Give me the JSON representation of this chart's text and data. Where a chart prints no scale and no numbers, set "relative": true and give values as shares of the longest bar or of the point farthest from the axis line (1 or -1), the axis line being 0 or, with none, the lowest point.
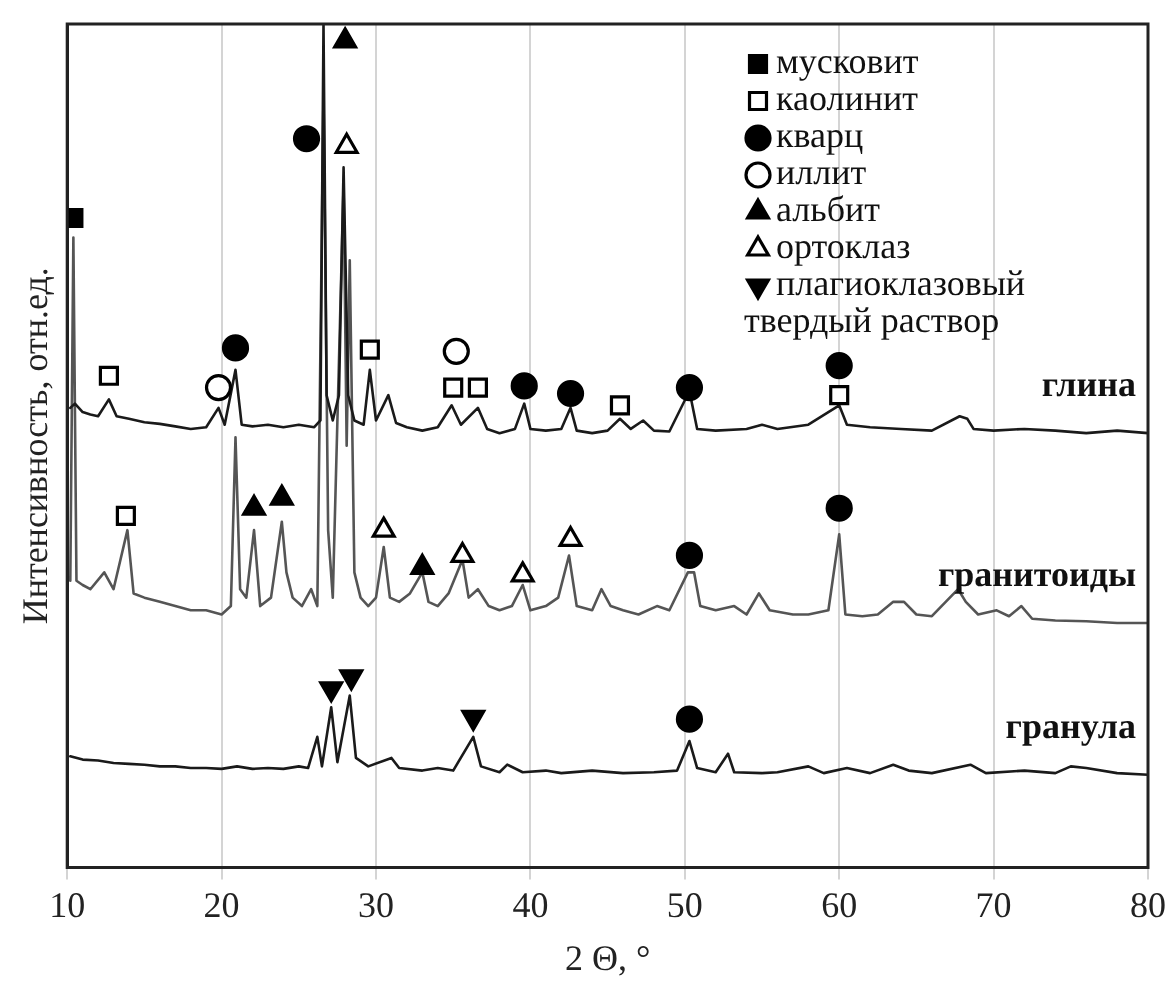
{
  "chart_data": {
    "type": "line",
    "relative": true,
    "xlabel": "2 Θ, °",
    "ylabel": "Интенсивность, отн.ед.",
    "xlim": [
      10,
      80
    ],
    "xticks": [
      10,
      20,
      30,
      40,
      50,
      60,
      70,
      80
    ],
    "grid": "x",
    "legend": "top right",
    "marker": "none",
    "line_style": "solid",
    "series": [
      {
        "name": "глина",
        "color": "#1a1a1a",
        "x": [
          10.2,
          10.5,
          11,
          11.5,
          12,
          12.7,
          13.2,
          14,
          15,
          16,
          17,
          18,
          19,
          19.8,
          20.2,
          20.9,
          21.3,
          22,
          23,
          24,
          25,
          26,
          26.4,
          26.6,
          26.8,
          27.2,
          27.6,
          27.9,
          28.2,
          28.6,
          29.2,
          29.6,
          30,
          30.8,
          31.3,
          32,
          33,
          34,
          34.9,
          35.5,
          36.6,
          37.2,
          38,
          39,
          39.6,
          40,
          41,
          42,
          42.6,
          43,
          44,
          45,
          45.8,
          46.5,
          47.3,
          48,
          49,
          50.3,
          50.8,
          52,
          54,
          55,
          56,
          58,
          60,
          60.5,
          62,
          64,
          66,
          67.8,
          68.3,
          68.7,
          70,
          72,
          74,
          76,
          78,
          80
        ],
        "values": [
          0.545,
          0.55,
          0.54,
          0.537,
          0.535,
          0.555,
          0.535,
          0.532,
          0.528,
          0.526,
          0.523,
          0.52,
          0.522,
          0.545,
          0.525,
          0.59,
          0.525,
          0.523,
          0.525,
          0.522,
          0.525,
          0.522,
          0.53,
          1.0,
          0.56,
          0.53,
          0.56,
          0.83,
          0.56,
          0.53,
          0.525,
          0.59,
          0.53,
          0.56,
          0.527,
          0.522,
          0.518,
          0.522,
          0.548,
          0.525,
          0.545,
          0.52,
          0.515,
          0.52,
          0.55,
          0.52,
          0.518,
          0.52,
          0.545,
          0.518,
          0.515,
          0.518,
          0.532,
          0.52,
          0.53,
          0.518,
          0.517,
          0.565,
          0.52,
          0.518,
          0.52,
          0.525,
          0.52,
          0.525,
          0.548,
          0.525,
          0.522,
          0.52,
          0.518,
          0.535,
          0.532,
          0.52,
          0.518,
          0.52,
          0.518,
          0.515,
          0.518,
          0.515
        ]
      },
      {
        "name": "гранитоиды",
        "color": "#555555",
        "x": [
          10.2,
          10.4,
          10.6,
          11,
          11.5,
          12.4,
          13,
          13.9,
          14.3,
          15,
          16,
          17,
          18,
          19,
          20,
          20.6,
          20.9,
          21.2,
          21.6,
          22.1,
          22.5,
          23.2,
          23.9,
          24.2,
          24.6,
          25.2,
          25.8,
          26.2,
          26.6,
          26.9,
          27.2,
          27.6,
          27.9,
          28.1,
          28.3,
          28.6,
          29,
          29.5,
          30,
          30.5,
          30.9,
          31.5,
          32.2,
          33,
          33.4,
          34,
          34.7,
          35.6,
          36,
          36.6,
          37.3,
          38,
          38.8,
          39.5,
          40,
          41,
          41.8,
          42.5,
          43,
          44,
          44.6,
          45.2,
          46,
          47,
          48.2,
          49,
          50.2,
          50.6,
          51,
          52,
          53.2,
          54,
          54.8,
          55.5,
          57,
          58,
          59.3,
          60,
          60.4,
          61.5,
          62.5,
          63.5,
          64.2,
          65,
          66,
          67.7,
          68.2,
          69,
          70.2,
          71,
          71.8,
          72.5,
          74,
          76,
          78,
          80
        ],
        "values": [
          0.34,
          0.747,
          0.34,
          0.335,
          0.33,
          0.35,
          0.33,
          0.4,
          0.325,
          0.32,
          0.315,
          0.31,
          0.305,
          0.305,
          0.3,
          0.31,
          0.51,
          0.33,
          0.32,
          0.4,
          0.31,
          0.32,
          0.41,
          0.35,
          0.32,
          0.31,
          0.33,
          0.31,
          0.92,
          0.4,
          0.32,
          0.6,
          0.81,
          0.5,
          0.72,
          0.35,
          0.32,
          0.31,
          0.32,
          0.38,
          0.32,
          0.315,
          0.325,
          0.35,
          0.315,
          0.31,
          0.325,
          0.365,
          0.32,
          0.33,
          0.31,
          0.305,
          0.31,
          0.335,
          0.305,
          0.31,
          0.32,
          0.37,
          0.31,
          0.305,
          0.33,
          0.31,
          0.305,
          0.3,
          0.31,
          0.305,
          0.35,
          0.35,
          0.31,
          0.305,
          0.31,
          0.3,
          0.325,
          0.305,
          0.3,
          0.3,
          0.305,
          0.395,
          0.3,
          0.298,
          0.3,
          0.315,
          0.315,
          0.3,
          0.298,
          0.33,
          0.315,
          0.3,
          0.305,
          0.298,
          0.31,
          0.295,
          0.293,
          0.292,
          0.29,
          0.29
        ]
      },
      {
        "name": "гранула",
        "color": "#1a1a1a",
        "x": [
          10.2,
          11,
          12,
          13,
          14,
          15,
          16,
          17,
          18,
          19,
          20,
          21,
          22,
          23,
          24,
          25,
          25.6,
          26.2,
          26.5,
          27.1,
          27.5,
          28.3,
          28.7,
          29.5,
          31,
          31.5,
          33,
          34,
          35,
          36.3,
          36.8,
          38,
          38.5,
          39.5,
          41,
          42,
          44,
          46,
          48,
          49.5,
          50.3,
          50.8,
          52,
          52.8,
          53.2,
          55,
          56,
          58,
          59,
          60.5,
          62,
          63.5,
          64.5,
          66,
          68.5,
          69.5,
          72,
          74,
          75,
          76,
          78,
          80
        ],
        "values": [
          0.132,
          0.128,
          0.127,
          0.124,
          0.123,
          0.122,
          0.12,
          0.12,
          0.118,
          0.118,
          0.117,
          0.12,
          0.117,
          0.118,
          0.117,
          0.12,
          0.118,
          0.155,
          0.12,
          0.19,
          0.125,
          0.204,
          0.13,
          0.12,
          0.13,
          0.118,
          0.115,
          0.118,
          0.115,
          0.155,
          0.12,
          0.113,
          0.122,
          0.113,
          0.115,
          0.112,
          0.115,
          0.112,
          0.113,
          0.115,
          0.15,
          0.118,
          0.113,
          0.135,
          0.113,
          0.112,
          0.113,
          0.12,
          0.112,
          0.118,
          0.112,
          0.122,
          0.115,
          0.112,
          0.122,
          0.112,
          0.115,
          0.112,
          0.12,
          0.118,
          0.112,
          0.11
        ]
      },
      {
        "name": "мусковит",
        "type": "scatter",
        "marker": "square",
        "color": "#000000",
        "x": [
          10.4
        ],
        "values": [
          0.77
        ]
      },
      {
        "name": "каолинит",
        "type": "scatter",
        "marker": "square-open",
        "color": "#000000",
        "x": [
          12.7,
          13.8,
          29.6,
          35,
          36.6,
          45.8,
          60
        ],
        "values": [
          0.583,
          0.417,
          0.614,
          0.569,
          0.569,
          0.548,
          0.56
        ]
      },
      {
        "name": "кварц",
        "type": "scatter",
        "marker": "circle",
        "color": "#000000",
        "x": [
          20.9,
          25.5,
          39.6,
          42.6,
          50.3,
          60,
          50.3,
          60,
          50.3
        ],
        "values": [
          0.616,
          0.864,
          0.571,
          0.562,
          0.569,
          0.595,
          0.37,
          0.426,
          0.176
        ]
      },
      {
        "name": "иллит",
        "type": "scatter",
        "marker": "circle-open",
        "color": "#000000",
        "x": [
          19.8,
          35.2
        ],
        "values": [
          0.569,
          0.612
        ]
      },
      {
        "name": "альбит",
        "type": "scatter",
        "marker": "triangle",
        "color": "#000000",
        "x": [
          28,
          22.1,
          23.9,
          33
        ],
        "values": [
          0.98,
          0.426,
          0.438,
          0.356
        ]
      },
      {
        "name": "ортоклаз",
        "type": "scatter",
        "marker": "triangle-open",
        "color": "#000000",
        "x": [
          28.1,
          30.5,
          35.6,
          39.5,
          42.6
        ],
        "values": [
          0.855,
          0.4,
          0.37,
          0.347,
          0.389
        ]
      },
      {
        "name": "плагиоклазовый твердый раствор",
        "type": "scatter",
        "marker": "triangle-down",
        "color": "#000000",
        "x": [
          27.1,
          28.4,
          36.3
        ],
        "values": [
          0.212,
          0.226,
          0.178
        ]
      }
    ]
  }
}
